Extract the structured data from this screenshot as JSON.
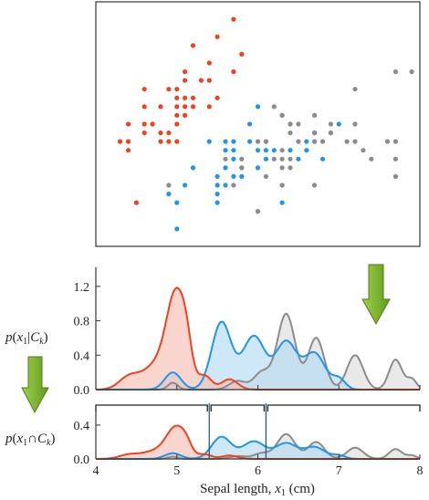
{
  "colors": {
    "setosa": "#f0421e",
    "versicolor": "#1f96e8",
    "virginica": "#8c8c8c",
    "setosa_fill": "#f7bfb3",
    "versicolor_fill": "#b5dcf5",
    "virginica_fill": "#dddddd",
    "arrow": "#7fba2a",
    "arrow_stroke": "#4f7d17",
    "boundary": "#20507a",
    "axis": "#333333"
  },
  "icons": {
    "right_arrow": "down-arrow-icon",
    "left_arrow": "down-arrow-icon"
  },
  "chart_data": [
    {
      "type": "scatter",
      "xlim": [
        4.0,
        8.0
      ],
      "ylim": [
        1.8,
        4.6
      ],
      "series": [
        {
          "key": "setosa",
          "points": [
            [
              4.3,
              3.0
            ],
            [
              4.4,
              2.9
            ],
            [
              4.4,
              3.0
            ],
            [
              4.4,
              3.2
            ],
            [
              4.5,
              2.3
            ],
            [
              4.6,
              3.1
            ],
            [
              4.6,
              3.2
            ],
            [
              4.6,
              3.4
            ],
            [
              4.6,
              3.6
            ],
            [
              4.7,
              3.2
            ],
            [
              4.8,
              3.0
            ],
            [
              4.8,
              3.1
            ],
            [
              4.8,
              3.4
            ],
            [
              4.9,
              3.0
            ],
            [
              4.9,
              3.1
            ],
            [
              4.9,
              3.6
            ],
            [
              5.0,
              3.0
            ],
            [
              5.0,
              3.2
            ],
            [
              5.0,
              3.3
            ],
            [
              5.0,
              3.4
            ],
            [
              5.0,
              3.5
            ],
            [
              5.0,
              3.6
            ],
            [
              5.1,
              3.3
            ],
            [
              5.1,
              3.4
            ],
            [
              5.1,
              3.5
            ],
            [
              5.1,
              3.7
            ],
            [
              5.1,
              3.8
            ],
            [
              5.2,
              3.4
            ],
            [
              5.2,
              3.5
            ],
            [
              5.2,
              4.1
            ],
            [
              5.3,
              3.7
            ],
            [
              5.4,
              3.4
            ],
            [
              5.4,
              3.7
            ],
            [
              5.4,
              3.9
            ],
            [
              5.5,
              3.5
            ],
            [
              5.5,
              4.2
            ],
            [
              5.7,
              3.8
            ],
            [
              5.7,
              4.4
            ],
            [
              5.8,
              4.0
            ]
          ]
        },
        {
          "key": "versicolor",
          "points": [
            [
              4.9,
              2.4
            ],
            [
              5.0,
              2.0
            ],
            [
              5.0,
              2.3
            ],
            [
              5.1,
              2.5
            ],
            [
              5.2,
              2.7
            ],
            [
              5.4,
              3.0
            ],
            [
              5.5,
              2.3
            ],
            [
              5.5,
              2.4
            ],
            [
              5.5,
              2.5
            ],
            [
              5.5,
              2.6
            ],
            [
              5.6,
              2.5
            ],
            [
              5.6,
              2.7
            ],
            [
              5.6,
              2.9
            ],
            [
              5.6,
              3.0
            ],
            [
              5.7,
              2.6
            ],
            [
              5.7,
              2.8
            ],
            [
              5.7,
              2.9
            ],
            [
              5.7,
              3.0
            ],
            [
              5.8,
              2.6
            ],
            [
              5.8,
              2.7
            ],
            [
              5.9,
              3.0
            ],
            [
              5.9,
              3.2
            ],
            [
              6.0,
              2.2
            ],
            [
              6.0,
              2.7
            ],
            [
              6.0,
              2.9
            ],
            [
              6.0,
              3.4
            ],
            [
              6.1,
              2.8
            ],
            [
              6.1,
              2.9
            ],
            [
              6.1,
              3.0
            ],
            [
              6.2,
              2.9
            ],
            [
              6.3,
              2.3
            ],
            [
              6.3,
              2.5
            ],
            [
              6.3,
              3.3
            ],
            [
              6.4,
              2.9
            ],
            [
              6.4,
              3.2
            ],
            [
              6.5,
              2.8
            ],
            [
              6.6,
              2.9
            ],
            [
              6.6,
              3.0
            ],
            [
              6.7,
              3.0
            ],
            [
              6.7,
              3.1
            ],
            [
              6.8,
              2.8
            ],
            [
              6.9,
              3.1
            ],
            [
              7.0,
              3.2
            ]
          ]
        },
        {
          "key": "virginica",
          "points": [
            [
              4.9,
              2.5
            ],
            [
              5.6,
              2.8
            ],
            [
              5.7,
              2.5
            ],
            [
              5.8,
              2.7
            ],
            [
              5.8,
              2.8
            ],
            [
              6.0,
              3.0
            ],
            [
              6.0,
              2.2
            ],
            [
              6.1,
              2.6
            ],
            [
              6.1,
              3.0
            ],
            [
              6.2,
              2.8
            ],
            [
              6.2,
              3.4
            ],
            [
              6.3,
              2.5
            ],
            [
              6.3,
              2.7
            ],
            [
              6.3,
              2.8
            ],
            [
              6.3,
              2.9
            ],
            [
              6.3,
              3.3
            ],
            [
              6.4,
              2.7
            ],
            [
              6.4,
              2.8
            ],
            [
              6.4,
              3.1
            ],
            [
              6.4,
              3.2
            ],
            [
              6.5,
              3.0
            ],
            [
              6.5,
              3.2
            ],
            [
              6.7,
              2.5
            ],
            [
              6.7,
              3.0
            ],
            [
              6.7,
              3.1
            ],
            [
              6.7,
              3.3
            ],
            [
              6.8,
              3.0
            ],
            [
              6.9,
              3.1
            ],
            [
              6.9,
              3.2
            ],
            [
              7.1,
              3.0
            ],
            [
              7.2,
              3.0
            ],
            [
              7.2,
              3.2
            ],
            [
              7.2,
              3.6
            ],
            [
              7.3,
              2.9
            ],
            [
              7.4,
              2.8
            ],
            [
              7.6,
              3.0
            ],
            [
              7.7,
              2.6
            ],
            [
              7.7,
              2.8
            ],
            [
              7.7,
              3.0
            ],
            [
              7.7,
              3.8
            ],
            [
              7.9,
              3.8
            ]
          ]
        }
      ]
    },
    {
      "type": "area",
      "ylabel": "p(x1|Ck)",
      "xlim": [
        4.0,
        8.0
      ],
      "ylim": [
        0,
        1.4
      ],
      "yticks": [
        "0.0",
        "0.4",
        "0.8",
        "1.2"
      ],
      "series": [
        {
          "key": "setosa",
          "peaks": [
            [
              4.4,
              0.13,
              0.12
            ],
            [
              4.75,
              0.28,
              0.18
            ],
            [
              5.0,
              1.05,
              0.12
            ],
            [
              5.12,
              0.2,
              0.06
            ],
            [
              5.35,
              0.15,
              0.08
            ],
            [
              5.65,
              0.12,
              0.1
            ]
          ]
        },
        {
          "key": "versicolor",
          "peaks": [
            [
              4.95,
              0.2,
              0.1
            ],
            [
              5.55,
              0.78,
              0.12
            ],
            [
              5.95,
              0.62,
              0.14
            ],
            [
              6.35,
              0.55,
              0.13
            ],
            [
              6.7,
              0.42,
              0.13
            ],
            [
              7.0,
              0.12,
              0.08
            ]
          ]
        },
        {
          "key": "virginica",
          "peaks": [
            [
              4.95,
              0.08,
              0.06
            ],
            [
              5.75,
              0.1,
              0.1
            ],
            [
              6.05,
              0.2,
              0.1
            ],
            [
              6.35,
              0.88,
              0.11
            ],
            [
              6.72,
              0.6,
              0.1
            ],
            [
              7.2,
              0.4,
              0.1
            ],
            [
              7.7,
              0.35,
              0.08
            ],
            [
              7.9,
              0.12,
              0.06
            ]
          ]
        }
      ]
    },
    {
      "type": "area",
      "ylabel": "p(x1∩Ck)",
      "xlim": [
        4.0,
        8.0
      ],
      "ylim": [
        0,
        0.55
      ],
      "yticks": [
        "0.0",
        "0.4"
      ],
      "xticks": [
        "4",
        "5",
        "6",
        "7",
        "8"
      ],
      "xlabel": "Sepal length, x1 (cm)",
      "scale": 0.3333,
      "boundaries": [
        5.4,
        6.1
      ]
    }
  ]
}
